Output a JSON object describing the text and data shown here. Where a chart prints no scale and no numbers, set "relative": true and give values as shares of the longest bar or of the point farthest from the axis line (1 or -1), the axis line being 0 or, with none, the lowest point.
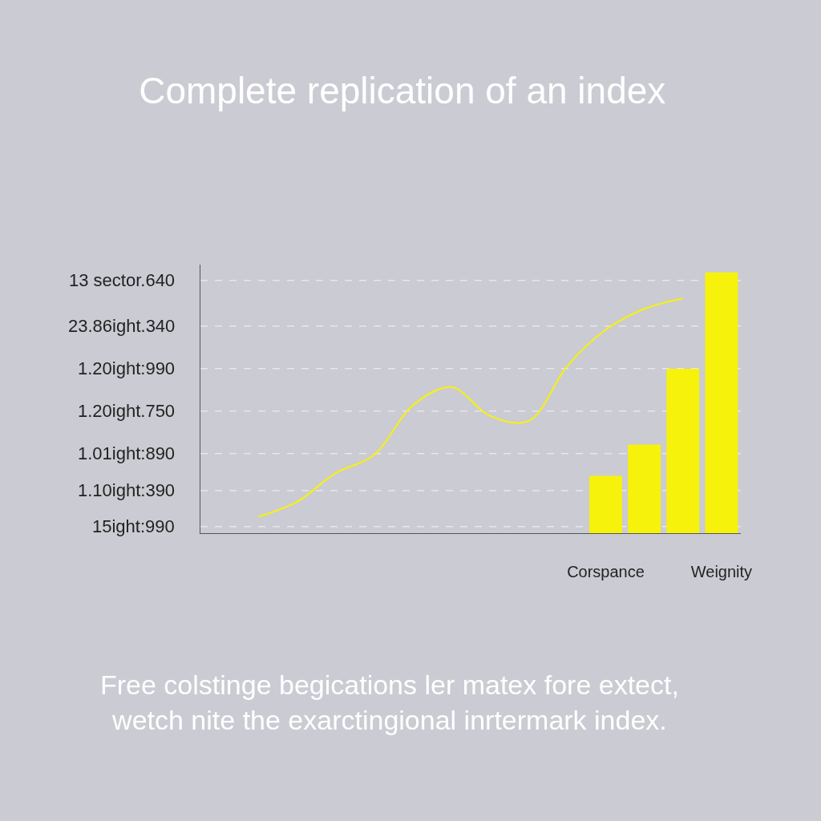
{
  "chart_data": {
    "type": "bar",
    "title": "Complete replication of an index",
    "annotations": [
      "Free colstinge begications ler matex fore extect,\nwetch nite the exarctingional inrtermark index.",
      "15ight:990",
      "1.10ight:390",
      "1.01ight:890",
      "1.20ight.750",
      "1.20ight:990",
      "23.86ight.340",
      "13 sector.640"
    ],
    "relative": true,
    "categories": [
      null,
      null,
      null,
      null,
      null,
      null,
      null,
      null,
      null,
      null,
      "Corspance",
      null,
      null,
      "Weignity"
    ],
    "series": [
      {
        "color": "#f7f20c",
        "values": [
          null,
          null,
          null,
          null,
          null,
          null,
          null,
          null,
          null,
          null,
          0.22,
          0.34,
          0.63,
          1.0
        ]
      },
      {
        "type": "line",
        "color": "#f7f20c",
        "values": [
          null,
          0.063,
          0.12,
          0.23,
          0.3,
          0.49,
          0.56,
          0.45,
          0.43,
          0.64,
          0.78,
          0.86,
          0.9,
          null
        ]
      }
    ],
    "ref_lines": [
      {
        "axis": "y",
        "value": 0.025,
        "line_style": "dashed",
        "color": "#f4f4f6"
      },
      {
        "axis": "y",
        "value": 0.163,
        "line_style": "dashed",
        "color": "#f4f4f6"
      },
      {
        "axis": "y",
        "value": 0.305,
        "line_style": "dashed",
        "color": "#f4f4f6"
      },
      {
        "axis": "y",
        "value": 0.468,
        "line_style": "dashed",
        "color": "#f4f4f6"
      },
      {
        "axis": "y",
        "value": 0.631,
        "line_style": "dashed",
        "color": "#f4f4f6"
      },
      {
        "axis": "y",
        "value": 0.794,
        "line_style": "dashed",
        "color": "#f4f4f6"
      },
      {
        "axis": "y",
        "value": 0.969,
        "line_style": "dashed",
        "color": "#f4f4f6"
      }
    ]
  }
}
